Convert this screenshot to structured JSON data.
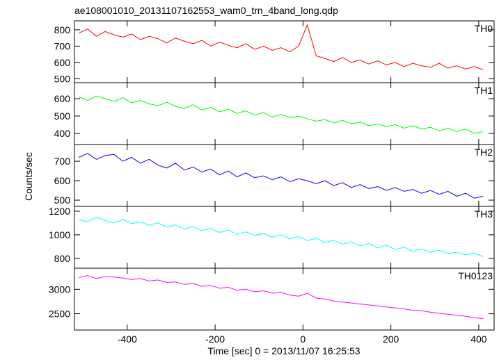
{
  "chart_data": {
    "type": "line",
    "title": "ae108001010_20131107162553_wam0_trn_4band_long.qdp",
    "xlabel": "Time [sec] 0 = 2013/11/07 16:25:53",
    "ylabel": "Counts/sec",
    "xlim": [
      -520,
      435
    ],
    "xticks": [
      -400,
      -200,
      0,
      200,
      400
    ],
    "x": [
      -510,
      -490,
      -470,
      -450,
      -430,
      -410,
      -390,
      -370,
      -350,
      -330,
      -310,
      -290,
      -270,
      -250,
      -230,
      -210,
      -190,
      -170,
      -150,
      -130,
      -110,
      -90,
      -70,
      -50,
      -30,
      -10,
      10,
      30,
      50,
      70,
      90,
      110,
      130,
      150,
      170,
      190,
      210,
      230,
      250,
      270,
      290,
      310,
      330,
      350,
      370,
      390,
      410
    ],
    "series": [
      {
        "name": "TH0",
        "color": "#ff0000",
        "ylim": [
          476,
          855
        ],
        "yticks": [
          500,
          600,
          700,
          800
        ],
        "values": [
          780,
          805,
          760,
          790,
          770,
          755,
          775,
          740,
          760,
          745,
          720,
          750,
          730,
          715,
          735,
          700,
          725,
          705,
          690,
          715,
          680,
          700,
          675,
          690,
          665,
          700,
          830,
          640,
          625,
          605,
          630,
          600,
          615,
          590,
          610,
          585,
          600,
          575,
          595,
          580,
          570,
          595,
          565,
          580,
          560,
          575,
          555
        ]
      },
      {
        "name": "TH1",
        "color": "#00ff00",
        "ylim": [
          336,
          692
        ],
        "yticks": [
          400,
          500,
          600
        ],
        "values": [
          610,
          590,
          615,
          600,
          585,
          605,
          575,
          590,
          570,
          560,
          580,
          555,
          545,
          565,
          535,
          550,
          525,
          540,
          515,
          530,
          505,
          520,
          495,
          510,
          490,
          500,
          485,
          470,
          480,
          460,
          475,
          455,
          465,
          445,
          455,
          440,
          450,
          430,
          445,
          425,
          435,
          415,
          430,
          410,
          425,
          400,
          410
        ]
      },
      {
        "name": "TH2",
        "color": "#0000ff",
        "ylim": [
          468,
          786
        ],
        "yticks": [
          500,
          600,
          700
        ],
        "values": [
          720,
          740,
          710,
          730,
          735,
          700,
          720,
          690,
          710,
          680,
          665,
          690,
          655,
          670,
          645,
          660,
          630,
          650,
          620,
          640,
          615,
          625,
          605,
          620,
          595,
          610,
          600,
          585,
          600,
          575,
          590,
          565,
          580,
          560,
          570,
          550,
          565,
          545,
          555,
          535,
          550,
          530,
          545,
          520,
          535,
          510,
          520
        ]
      },
      {
        "name": "TH3",
        "color": "#00ffff",
        "ylim": [
          717,
          1241
        ],
        "yticks": [
          800,
          1000,
          1200
        ],
        "values": [
          1130,
          1110,
          1150,
          1120,
          1100,
          1130,
          1095,
          1110,
          1080,
          1100,
          1065,
          1085,
          1050,
          1070,
          1035,
          1055,
          1020,
          1040,
          1005,
          1025,
          995,
          1010,
          980,
          1000,
          965,
          985,
          950,
          970,
          935,
          955,
          920,
          940,
          905,
          925,
          890,
          910,
          875,
          895,
          860,
          880,
          850,
          870,
          840,
          855,
          830,
          845,
          815
        ]
      },
      {
        "name": "TH0123",
        "color": "#ff00ff",
        "ylim": [
          2167,
          3431
        ],
        "yticks": [
          2500,
          3000
        ],
        "values": [
          3240,
          3280,
          3220,
          3260,
          3250,
          3230,
          3200,
          3220,
          3170,
          3190,
          3140,
          3150,
          3100,
          3120,
          3060,
          3080,
          3020,
          3040,
          2980,
          3000,
          2950,
          2970,
          2920,
          2940,
          2880,
          2860,
          2920,
          2820,
          2800,
          2760,
          2740,
          2720,
          2700,
          2680,
          2660,
          2640,
          2620,
          2600,
          2570,
          2560,
          2530,
          2510,
          2490,
          2470,
          2450,
          2420,
          2400
        ]
      }
    ]
  }
}
